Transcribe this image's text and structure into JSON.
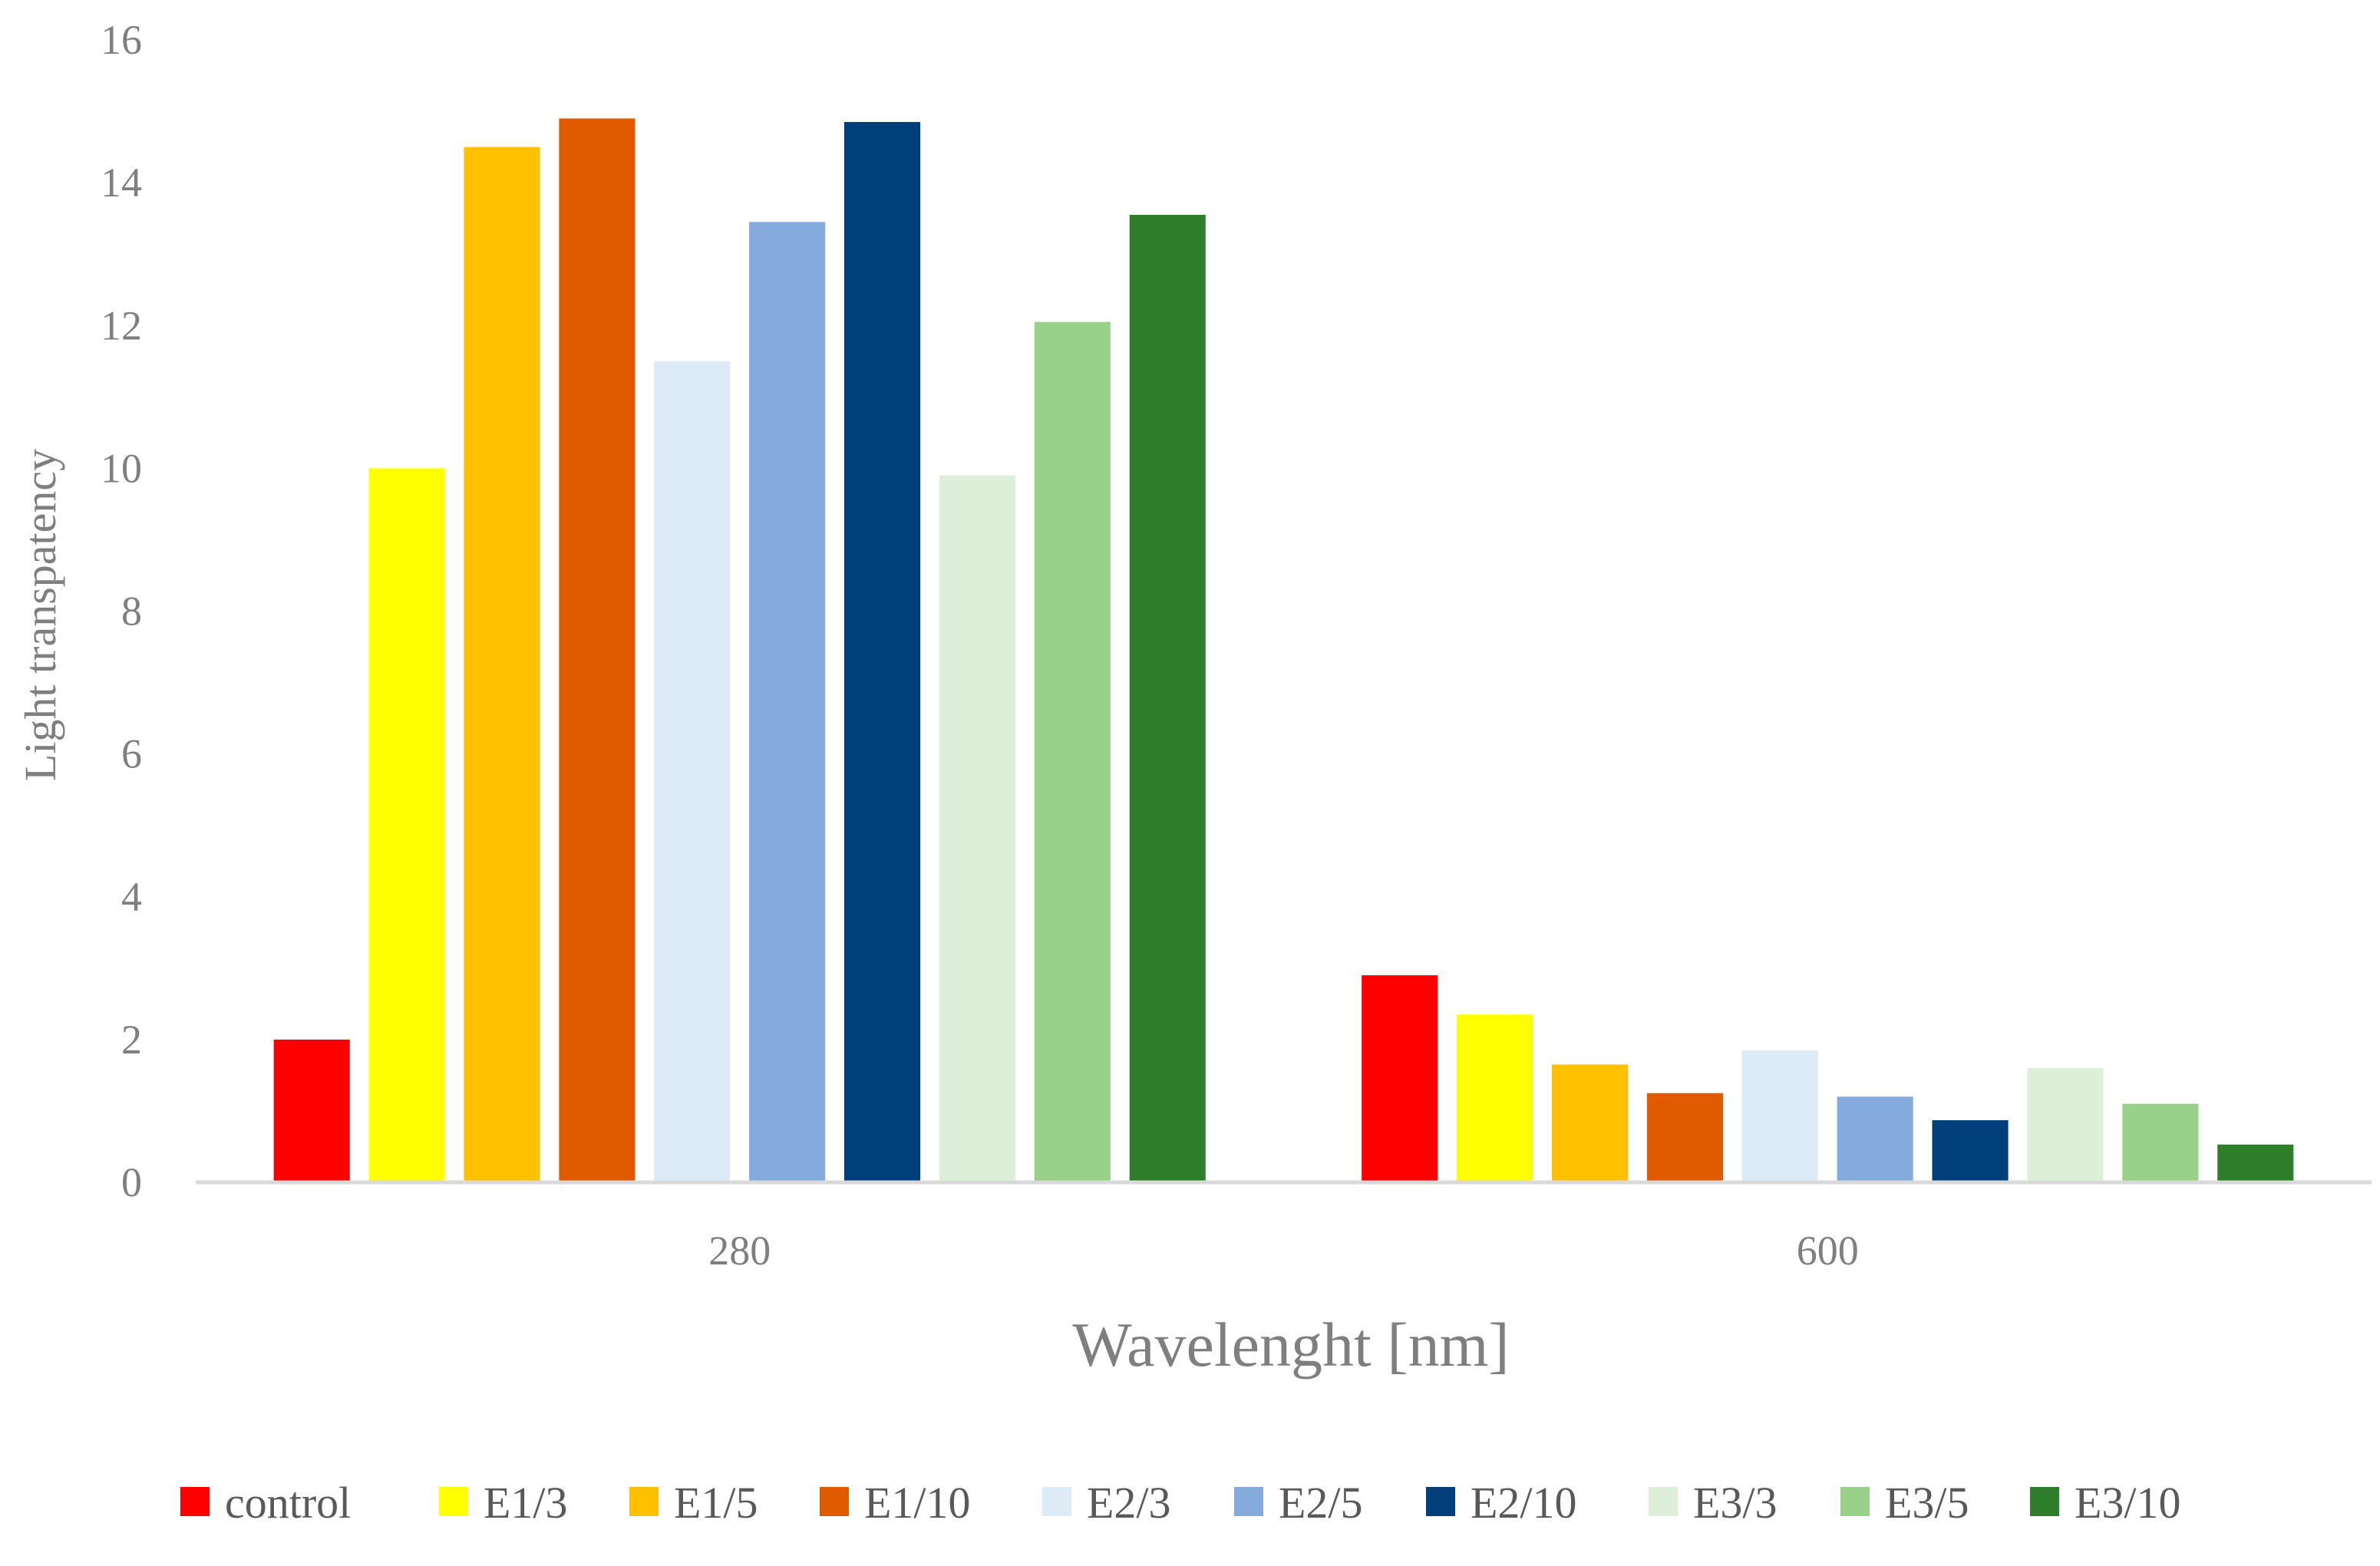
{
  "chart_data": {
    "type": "bar",
    "title": "",
    "xlabel": "Wavelenght [nm]",
    "ylabel": "Light transpatency",
    "categories": [
      "280",
      "600"
    ],
    "ylim": [
      0,
      16
    ],
    "yticks": [
      "0",
      "2",
      "4",
      "6",
      "8",
      "10",
      "12",
      "14",
      "16"
    ],
    "grid": false,
    "legend_position": "bottom",
    "series": [
      {
        "name": "control",
        "color": "#FF0000",
        "values": [
          2.0,
          2.9
        ]
      },
      {
        "name": "E1/3",
        "color": "#FFFF00",
        "values": [
          10.0,
          2.35
        ]
      },
      {
        "name": "E1/5",
        "color": "#FFC000",
        "values": [
          14.5,
          1.65
        ]
      },
      {
        "name": "E1/10",
        "color": "#E05A00",
        "values": [
          14.9,
          1.25
        ]
      },
      {
        "name": "E2/3",
        "color": "#DDEBF7",
        "values": [
          11.5,
          1.85
        ]
      },
      {
        "name": "E2/5",
        "color": "#84AADE",
        "values": [
          13.45,
          1.2
        ]
      },
      {
        "name": "E2/10",
        "color": "#003F7A",
        "values": [
          14.85,
          0.87
        ]
      },
      {
        "name": "E3/3",
        "color": "#DDEFD9",
        "values": [
          9.9,
          1.6
        ]
      },
      {
        "name": "E3/5",
        "color": "#99D18A",
        "values": [
          12.05,
          1.1
        ]
      },
      {
        "name": "E3/10",
        "color": "#2E7D2B",
        "values": [
          13.55,
          0.53
        ]
      }
    ]
  }
}
